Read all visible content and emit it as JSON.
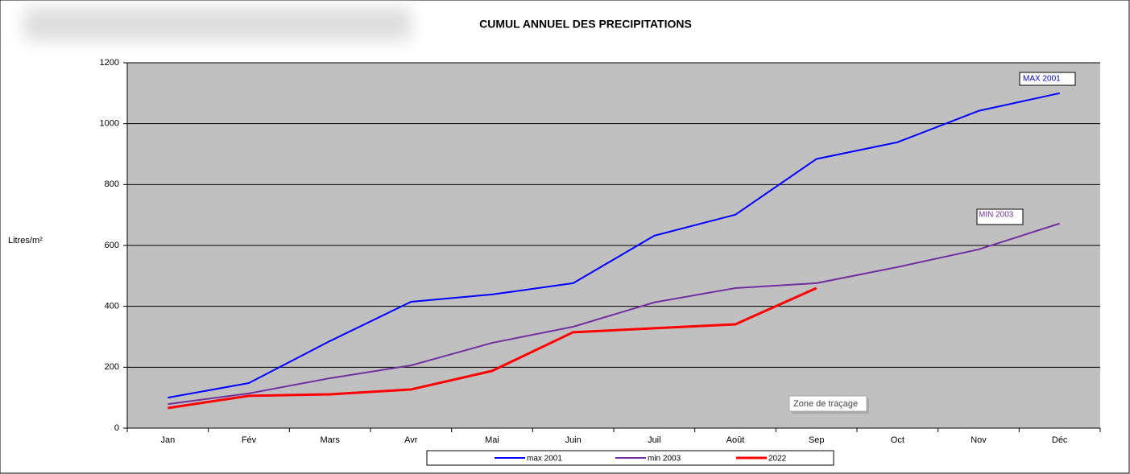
{
  "chart_data": {
    "type": "line",
    "title": "CUMUL ANNUEL DES PRECIPITATIONS",
    "y_label": "Litres/m²",
    "categories": [
      "Jan",
      "Fév",
      "Mars",
      "Avr",
      "Mai",
      "Juin",
      "Juil",
      "Août",
      "Sep",
      "Oct",
      "Nov",
      "Déc"
    ],
    "series": [
      {
        "name": "max 2001",
        "color": "#0000ff",
        "values": [
          100,
          148,
          286,
          415,
          439,
          476,
          632,
          701,
          884,
          939,
          1042,
          1100
        ]
      },
      {
        "name": "min 2003",
        "color": "#7030a0",
        "values": [
          79,
          114,
          164,
          206,
          280,
          333,
          413,
          460,
          476,
          529,
          587,
          672
        ]
      },
      {
        "name": "2022",
        "color": "#ff0000",
        "values": [
          66,
          106,
          111,
          127,
          188,
          315,
          328,
          341,
          460,
          null,
          null,
          null
        ]
      }
    ],
    "annotations": [
      "MAX 2001",
      "MIN 2003"
    ],
    "tooltip": "Zone de traçage",
    "ylim": [
      0,
      1200
    ],
    "yticks": [
      0,
      200,
      400,
      600,
      800,
      1000,
      1200
    ],
    "grid": true,
    "legend": "bottom"
  }
}
